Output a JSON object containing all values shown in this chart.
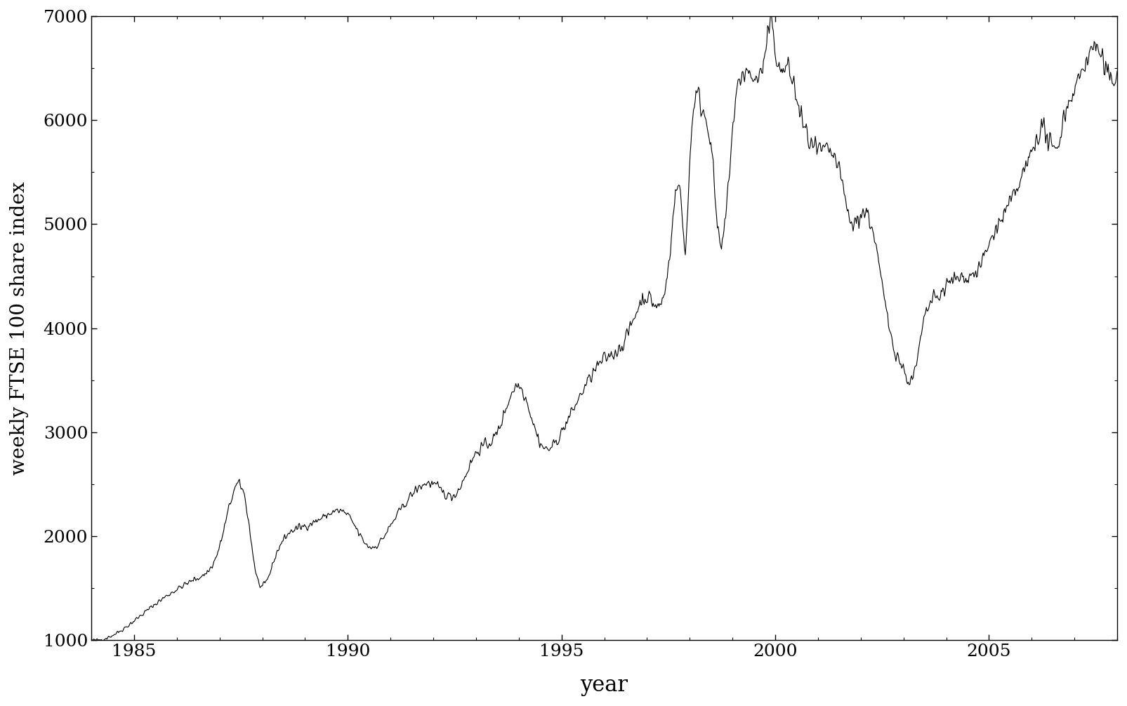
{
  "title": "",
  "xlabel": "year",
  "ylabel": "weekly FTSE 100 share index",
  "xlim": [
    1984.0,
    2008.0
  ],
  "ylim": [
    1000,
    7000
  ],
  "yticks": [
    1000,
    2000,
    3000,
    4000,
    5000,
    6000,
    7000
  ],
  "xticks": [
    1985,
    1990,
    1995,
    2000,
    2005
  ],
  "line_color": "black",
  "line_width": 0.8,
  "bg_color": "white",
  "spine_color": "black"
}
